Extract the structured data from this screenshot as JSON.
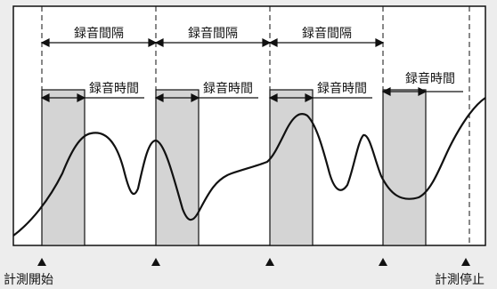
{
  "interval_label": "録音間隔",
  "duration_label": "録音時間",
  "start_label": "計測開始",
  "stop_label": "計測停止",
  "colors": {
    "background": "#ededed",
    "plot_area": "#ffffff",
    "recording_block": "#d4d4d4",
    "line": "#111111"
  }
}
